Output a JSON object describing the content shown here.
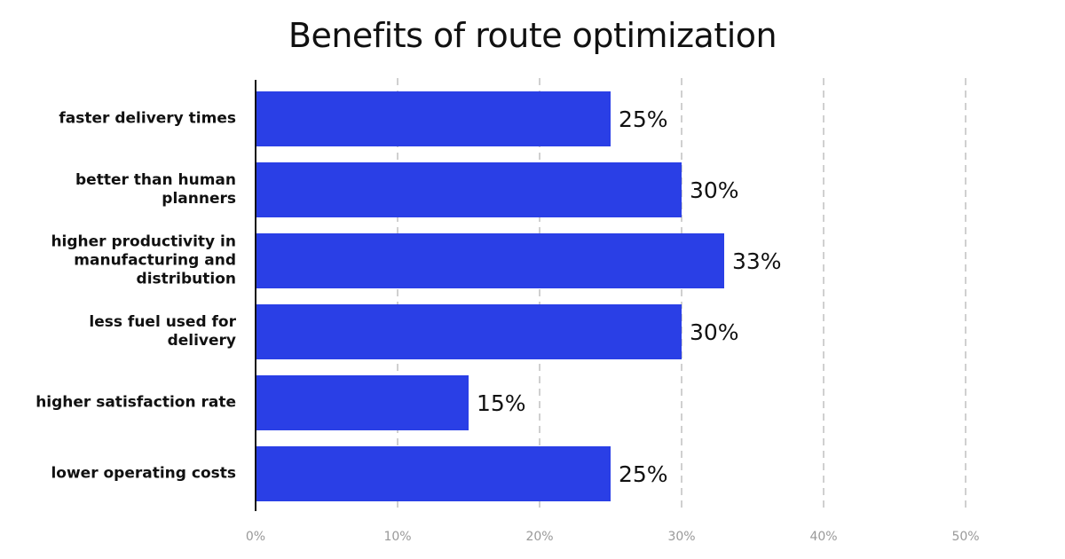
{
  "chart_data": {
    "type": "barh",
    "title": "Benefits of route optimization",
    "categories": [
      "faster delivery times",
      "better than human planners",
      "higher productivity in manufacturing and distribution",
      "less fuel used for delivery",
      "higher satisfaction rate",
      "lower operating costs"
    ],
    "values": [
      25,
      30,
      33,
      30,
      15,
      25
    ],
    "value_labels": [
      "25%",
      "30%",
      "33%",
      "30%",
      "15%",
      "25%"
    ],
    "color": "#2a3fe6",
    "xlim": [
      0,
      50
    ],
    "xticks": [
      {
        "value": 0,
        "label": "0%"
      },
      {
        "value": 10,
        "label": "10%"
      },
      {
        "value": 20,
        "label": "20%"
      },
      {
        "value": 30,
        "label": "30%"
      },
      {
        "value": 40,
        "label": "40%"
      },
      {
        "value": 50,
        "label": "50%"
      }
    ],
    "grid": true
  }
}
